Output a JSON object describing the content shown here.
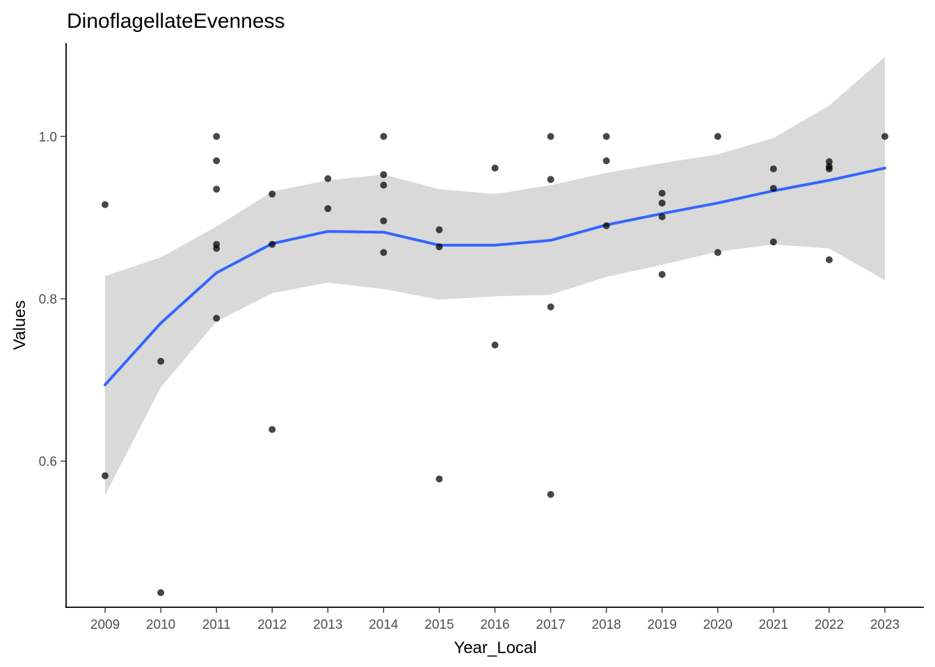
{
  "chart_data": {
    "type": "scatter",
    "title": "DinoflagellateEvenness",
    "xlabel": "Year_Local",
    "ylabel": "Values",
    "x_ticks": [
      "2009",
      "2010",
      "2011",
      "2012",
      "2013",
      "2014",
      "2015",
      "2016",
      "2017",
      "2018",
      "2019",
      "2020",
      "2021",
      "2022",
      "2023"
    ],
    "y_ticks": [
      "0.6",
      "0.8",
      "1.0"
    ],
    "xlim": [
      2008.3,
      2023.7
    ],
    "ylim": [
      0.42,
      1.115
    ],
    "grid": false,
    "legend": "none",
    "point_color": "#000000",
    "point_opacity": 0.72,
    "smooth_color": "#3366FF",
    "band_color": "#D9D9D9",
    "points": [
      [
        2009,
        0.916
      ],
      [
        2009,
        0.582
      ],
      [
        2010,
        0.723
      ],
      [
        2010,
        0.438
      ],
      [
        2011,
        1.0
      ],
      [
        2011,
        0.97
      ],
      [
        2011,
        0.935
      ],
      [
        2011,
        0.867
      ],
      [
        2011,
        0.862
      ],
      [
        2011,
        0.776
      ],
      [
        2012,
        0.929
      ],
      [
        2012,
        0.867
      ],
      [
        2012,
        0.639
      ],
      [
        2013,
        0.948
      ],
      [
        2013,
        0.911
      ],
      [
        2014,
        1.0
      ],
      [
        2014,
        0.953
      ],
      [
        2014,
        0.94
      ],
      [
        2014,
        0.896
      ],
      [
        2014,
        0.857
      ],
      [
        2015,
        0.885
      ],
      [
        2015,
        0.864
      ],
      [
        2015,
        0.578
      ],
      [
        2016,
        0.961
      ],
      [
        2016,
        0.743
      ],
      [
        2017,
        1.0
      ],
      [
        2017,
        0.947
      ],
      [
        2017,
        0.79
      ],
      [
        2017,
        0.559
      ],
      [
        2018,
        1.0
      ],
      [
        2018,
        0.97
      ],
      [
        2018,
        0.89
      ],
      [
        2019,
        0.93
      ],
      [
        2019,
        0.918
      ],
      [
        2019,
        0.901
      ],
      [
        2019,
        0.83
      ],
      [
        2020,
        1.0
      ],
      [
        2020,
        0.857
      ],
      [
        2021,
        0.96
      ],
      [
        2021,
        0.936
      ],
      [
        2021,
        0.87
      ],
      [
        2022,
        0.969
      ],
      [
        2022,
        0.963
      ],
      [
        2022,
        0.96
      ],
      [
        2022,
        0.848
      ],
      [
        2023,
        1.0
      ]
    ],
    "smooth": {
      "x": [
        2009,
        2010,
        2011,
        2012,
        2013,
        2014,
        2015,
        2016,
        2017,
        2018,
        2019,
        2020,
        2021,
        2022,
        2023
      ],
      "y": [
        0.694,
        0.77,
        0.832,
        0.868,
        0.883,
        0.882,
        0.866,
        0.866,
        0.872,
        0.891,
        0.905,
        0.918,
        0.933,
        0.946,
        0.961
      ],
      "lower": [
        0.558,
        0.691,
        0.772,
        0.807,
        0.82,
        0.812,
        0.799,
        0.803,
        0.805,
        0.827,
        0.842,
        0.858,
        0.867,
        0.862,
        0.823
      ],
      "upper": [
        0.828,
        0.851,
        0.889,
        0.932,
        0.946,
        0.953,
        0.935,
        0.929,
        0.94,
        0.955,
        0.967,
        0.978,
        0.998,
        1.038,
        1.098
      ]
    }
  }
}
